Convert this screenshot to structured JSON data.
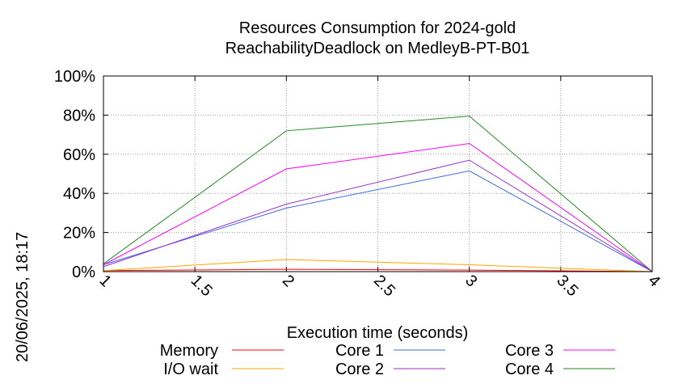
{
  "timestamp": "20/06/2025, 18:17",
  "chart_data": {
    "type": "line",
    "title": "Resources Consumption for 2024-gold",
    "subtitle": "ReachabilityDeadlock on MedleyB-PT-B01",
    "xlabel": "Execution time (seconds)",
    "ylabel": "",
    "xlim": [
      1,
      4
    ],
    "ylim": [
      0,
      100
    ],
    "x_ticks": [
      1,
      1.5,
      2,
      2.5,
      3,
      3.5,
      4
    ],
    "x_tick_labels": [
      "1",
      "1.5",
      "2",
      "2.5",
      "3",
      "3.5",
      "4"
    ],
    "y_ticks": [
      0,
      20,
      40,
      60,
      80,
      100
    ],
    "y_tick_labels": [
      "0%",
      "20%",
      "40%",
      "60%",
      "80%",
      "100%"
    ],
    "grid": true,
    "legend_position": "bottom",
    "x": [
      1,
      2,
      3,
      4
    ],
    "series": [
      {
        "name": "Memory",
        "color": "#ff0000",
        "values": [
          0.5,
          1.2,
          0.8,
          0
        ]
      },
      {
        "name": "I/O wait",
        "color": "#ffa500",
        "values": [
          0.5,
          6.2,
          3.5,
          0
        ]
      },
      {
        "name": "Core 1",
        "color": "#4169e1",
        "values": [
          3.5,
          32.5,
          51.5,
          0
        ]
      },
      {
        "name": "Core 2",
        "color": "#9932cc",
        "values": [
          2.5,
          34.5,
          57.0,
          0
        ]
      },
      {
        "name": "Core 3",
        "color": "#ff00ff",
        "values": [
          3.5,
          52.5,
          65.5,
          0
        ]
      },
      {
        "name": "Core 4",
        "color": "#228b22",
        "values": [
          4.0,
          72.0,
          79.5,
          0
        ]
      }
    ]
  }
}
